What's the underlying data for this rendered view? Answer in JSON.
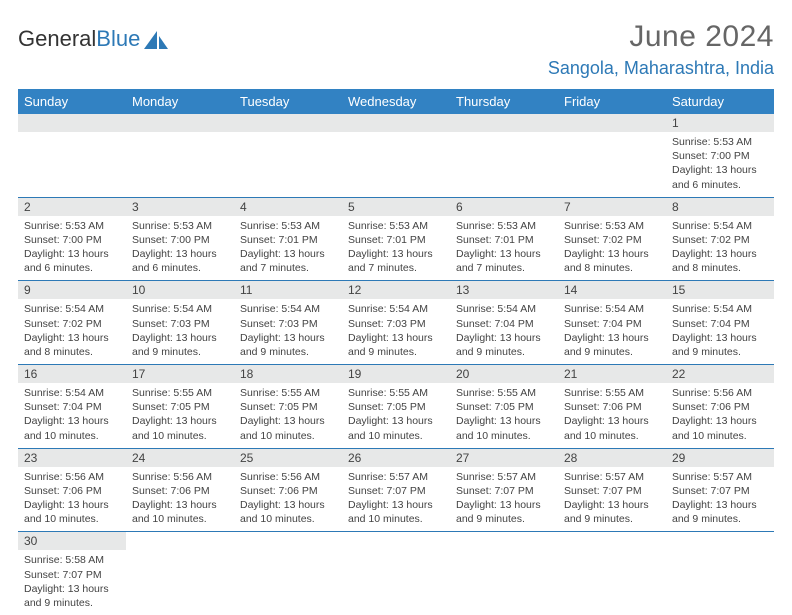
{
  "logo": {
    "part1": "General",
    "part2": "Blue"
  },
  "title": "June 2024",
  "location": "Sangola, Maharashtra, India",
  "colors": {
    "header_bg": "#3282c3",
    "accent": "#2d79b6",
    "daynum_bg": "#e7e8e8",
    "text": "#434343",
    "title_text": "#666666"
  },
  "weekdays": [
    "Sunday",
    "Monday",
    "Tuesday",
    "Wednesday",
    "Thursday",
    "Friday",
    "Saturday"
  ],
  "weeks": [
    [
      null,
      null,
      null,
      null,
      null,
      null,
      {
        "d": "1",
        "sr": "Sunrise: 5:53 AM",
        "ss": "Sunset: 7:00 PM",
        "dl1": "Daylight: 13 hours",
        "dl2": "and 6 minutes."
      }
    ],
    [
      {
        "d": "2",
        "sr": "Sunrise: 5:53 AM",
        "ss": "Sunset: 7:00 PM",
        "dl1": "Daylight: 13 hours",
        "dl2": "and 6 minutes."
      },
      {
        "d": "3",
        "sr": "Sunrise: 5:53 AM",
        "ss": "Sunset: 7:00 PM",
        "dl1": "Daylight: 13 hours",
        "dl2": "and 6 minutes."
      },
      {
        "d": "4",
        "sr": "Sunrise: 5:53 AM",
        "ss": "Sunset: 7:01 PM",
        "dl1": "Daylight: 13 hours",
        "dl2": "and 7 minutes."
      },
      {
        "d": "5",
        "sr": "Sunrise: 5:53 AM",
        "ss": "Sunset: 7:01 PM",
        "dl1": "Daylight: 13 hours",
        "dl2": "and 7 minutes."
      },
      {
        "d": "6",
        "sr": "Sunrise: 5:53 AM",
        "ss": "Sunset: 7:01 PM",
        "dl1": "Daylight: 13 hours",
        "dl2": "and 7 minutes."
      },
      {
        "d": "7",
        "sr": "Sunrise: 5:53 AM",
        "ss": "Sunset: 7:02 PM",
        "dl1": "Daylight: 13 hours",
        "dl2": "and 8 minutes."
      },
      {
        "d": "8",
        "sr": "Sunrise: 5:54 AM",
        "ss": "Sunset: 7:02 PM",
        "dl1": "Daylight: 13 hours",
        "dl2": "and 8 minutes."
      }
    ],
    [
      {
        "d": "9",
        "sr": "Sunrise: 5:54 AM",
        "ss": "Sunset: 7:02 PM",
        "dl1": "Daylight: 13 hours",
        "dl2": "and 8 minutes."
      },
      {
        "d": "10",
        "sr": "Sunrise: 5:54 AM",
        "ss": "Sunset: 7:03 PM",
        "dl1": "Daylight: 13 hours",
        "dl2": "and 9 minutes."
      },
      {
        "d": "11",
        "sr": "Sunrise: 5:54 AM",
        "ss": "Sunset: 7:03 PM",
        "dl1": "Daylight: 13 hours",
        "dl2": "and 9 minutes."
      },
      {
        "d": "12",
        "sr": "Sunrise: 5:54 AM",
        "ss": "Sunset: 7:03 PM",
        "dl1": "Daylight: 13 hours",
        "dl2": "and 9 minutes."
      },
      {
        "d": "13",
        "sr": "Sunrise: 5:54 AM",
        "ss": "Sunset: 7:04 PM",
        "dl1": "Daylight: 13 hours",
        "dl2": "and 9 minutes."
      },
      {
        "d": "14",
        "sr": "Sunrise: 5:54 AM",
        "ss": "Sunset: 7:04 PM",
        "dl1": "Daylight: 13 hours",
        "dl2": "and 9 minutes."
      },
      {
        "d": "15",
        "sr": "Sunrise: 5:54 AM",
        "ss": "Sunset: 7:04 PM",
        "dl1": "Daylight: 13 hours",
        "dl2": "and 9 minutes."
      }
    ],
    [
      {
        "d": "16",
        "sr": "Sunrise: 5:54 AM",
        "ss": "Sunset: 7:04 PM",
        "dl1": "Daylight: 13 hours",
        "dl2": "and 10 minutes."
      },
      {
        "d": "17",
        "sr": "Sunrise: 5:55 AM",
        "ss": "Sunset: 7:05 PM",
        "dl1": "Daylight: 13 hours",
        "dl2": "and 10 minutes."
      },
      {
        "d": "18",
        "sr": "Sunrise: 5:55 AM",
        "ss": "Sunset: 7:05 PM",
        "dl1": "Daylight: 13 hours",
        "dl2": "and 10 minutes."
      },
      {
        "d": "19",
        "sr": "Sunrise: 5:55 AM",
        "ss": "Sunset: 7:05 PM",
        "dl1": "Daylight: 13 hours",
        "dl2": "and 10 minutes."
      },
      {
        "d": "20",
        "sr": "Sunrise: 5:55 AM",
        "ss": "Sunset: 7:05 PM",
        "dl1": "Daylight: 13 hours",
        "dl2": "and 10 minutes."
      },
      {
        "d": "21",
        "sr": "Sunrise: 5:55 AM",
        "ss": "Sunset: 7:06 PM",
        "dl1": "Daylight: 13 hours",
        "dl2": "and 10 minutes."
      },
      {
        "d": "22",
        "sr": "Sunrise: 5:56 AM",
        "ss": "Sunset: 7:06 PM",
        "dl1": "Daylight: 13 hours",
        "dl2": "and 10 minutes."
      }
    ],
    [
      {
        "d": "23",
        "sr": "Sunrise: 5:56 AM",
        "ss": "Sunset: 7:06 PM",
        "dl1": "Daylight: 13 hours",
        "dl2": "and 10 minutes."
      },
      {
        "d": "24",
        "sr": "Sunrise: 5:56 AM",
        "ss": "Sunset: 7:06 PM",
        "dl1": "Daylight: 13 hours",
        "dl2": "and 10 minutes."
      },
      {
        "d": "25",
        "sr": "Sunrise: 5:56 AM",
        "ss": "Sunset: 7:06 PM",
        "dl1": "Daylight: 13 hours",
        "dl2": "and 10 minutes."
      },
      {
        "d": "26",
        "sr": "Sunrise: 5:57 AM",
        "ss": "Sunset: 7:07 PM",
        "dl1": "Daylight: 13 hours",
        "dl2": "and 10 minutes."
      },
      {
        "d": "27",
        "sr": "Sunrise: 5:57 AM",
        "ss": "Sunset: 7:07 PM",
        "dl1": "Daylight: 13 hours",
        "dl2": "and 9 minutes."
      },
      {
        "d": "28",
        "sr": "Sunrise: 5:57 AM",
        "ss": "Sunset: 7:07 PM",
        "dl1": "Daylight: 13 hours",
        "dl2": "and 9 minutes."
      },
      {
        "d": "29",
        "sr": "Sunrise: 5:57 AM",
        "ss": "Sunset: 7:07 PM",
        "dl1": "Daylight: 13 hours",
        "dl2": "and 9 minutes."
      }
    ],
    [
      {
        "d": "30",
        "sr": "Sunrise: 5:58 AM",
        "ss": "Sunset: 7:07 PM",
        "dl1": "Daylight: 13 hours",
        "dl2": "and 9 minutes."
      },
      null,
      null,
      null,
      null,
      null,
      null
    ]
  ]
}
